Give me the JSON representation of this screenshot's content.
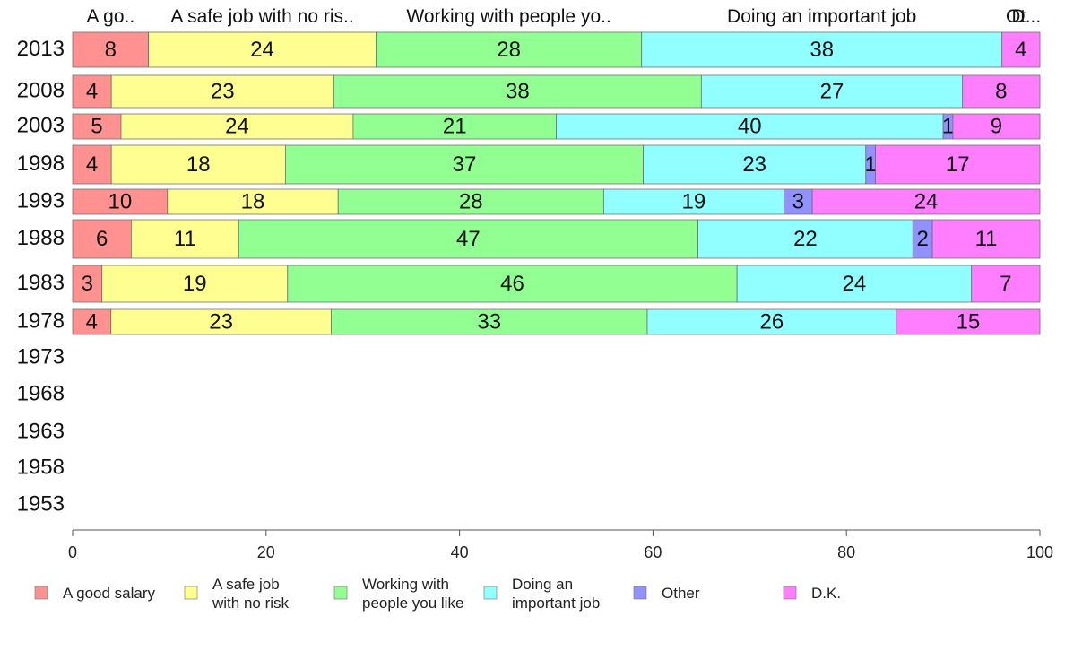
{
  "chart_data": {
    "type": "bar",
    "orientation": "horizontal-stacked-100",
    "categories": [
      "2013",
      "2008",
      "2003",
      "1998",
      "1993",
      "1988",
      "1983",
      "1978",
      "1973",
      "1968",
      "1963",
      "1958",
      "1953"
    ],
    "series": [
      {
        "name": "A good salary",
        "legend_lines": [
          "A good salary"
        ],
        "header": "A go..",
        "color": "#ff9191",
        "values": [
          8,
          4,
          5,
          4,
          10,
          6,
          3,
          4,
          null,
          null,
          null,
          null,
          null
        ]
      },
      {
        "name": "A safe job with no risk",
        "legend_lines": [
          "A safe job",
          "with no risk"
        ],
        "header": "A safe job with no ris..",
        "color": "#ffff91",
        "values": [
          24,
          23,
          24,
          18,
          18,
          11,
          19,
          23,
          null,
          null,
          null,
          null,
          null
        ]
      },
      {
        "name": "Working with people you like",
        "legend_lines": [
          "Working with",
          "people you like"
        ],
        "header": "Working with people yo..",
        "color": "#91ff91",
        "values": [
          28,
          38,
          21,
          37,
          28,
          47,
          46,
          33,
          null,
          null,
          null,
          null,
          null
        ]
      },
      {
        "name": "Doing an important job",
        "legend_lines": [
          "Doing an",
          "important job"
        ],
        "header": "Doing an important job",
        "color": "#91ffff",
        "values": [
          38,
          27,
          40,
          23,
          19,
          22,
          24,
          26,
          null,
          null,
          null,
          null,
          null
        ]
      },
      {
        "name": "Other",
        "legend_lines": [
          "Other"
        ],
        "header": "Ot",
        "color": "#9191ff",
        "values": [
          0,
          0,
          1,
          1,
          3,
          2,
          0,
          0,
          null,
          null,
          null,
          null,
          null
        ]
      },
      {
        "name": "D.K.",
        "legend_lines": [
          "D.K."
        ],
        "header": "D...",
        "color": "#ff7dff",
        "values": [
          4,
          8,
          9,
          17,
          24,
          11,
          7,
          15,
          null,
          null,
          null,
          null,
          null
        ]
      }
    ],
    "xlim": [
      0,
      100
    ],
    "xticks": [
      0,
      20,
      40,
      60,
      80,
      100
    ],
    "grid": false,
    "legend_position": "bottom"
  }
}
